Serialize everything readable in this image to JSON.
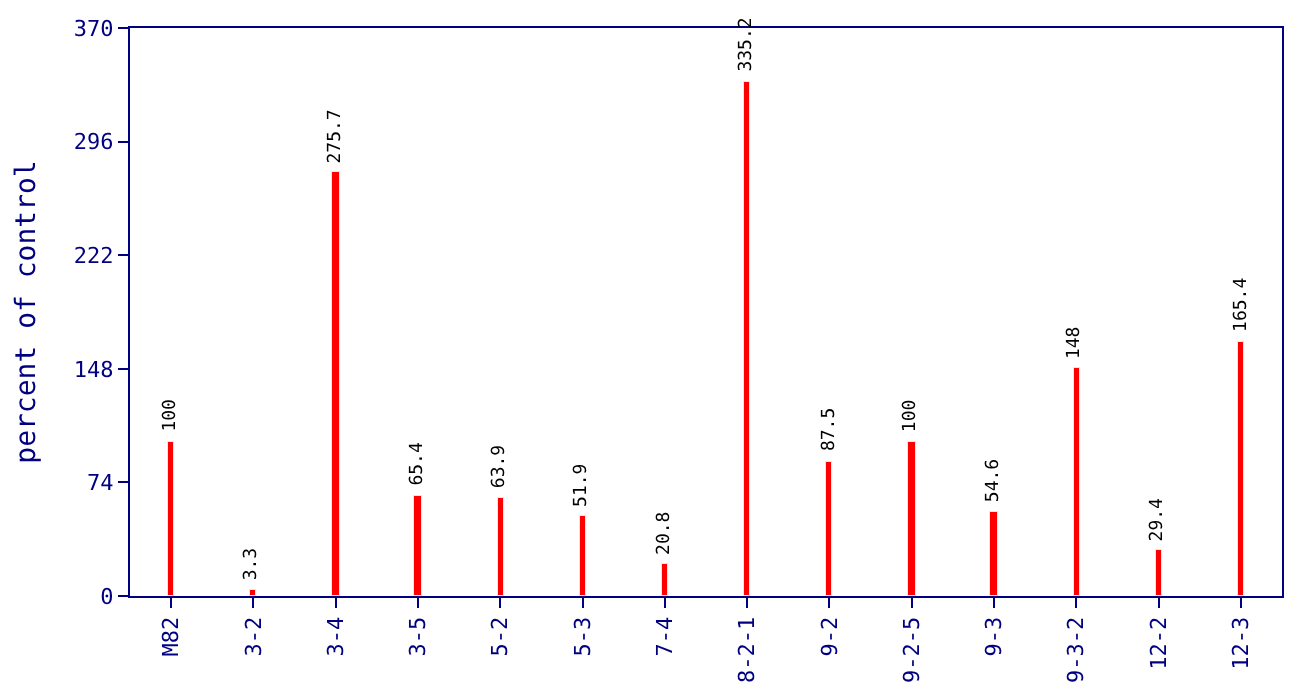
{
  "chart_data": {
    "type": "bar",
    "ylabel": "percent of control",
    "categories": [
      "M82",
      "3-2",
      "3-4",
      "3-5",
      "5-2",
      "5-3",
      "7-4",
      "8-2-1",
      "9-2",
      "9-2-5",
      "9-3",
      "9-3-2",
      "12-2",
      "12-3"
    ],
    "values": [
      100,
      3.3,
      275.7,
      65.4,
      63.9,
      51.9,
      20.8,
      335.2,
      87.5,
      100,
      54.6,
      148,
      29.4,
      165.4
    ],
    "color": "#ff0000",
    "data_labels": true,
    "legend": false,
    "ylim": [
      0,
      370
    ],
    "yticks": [
      0,
      74,
      148,
      222,
      296,
      370
    ]
  }
}
